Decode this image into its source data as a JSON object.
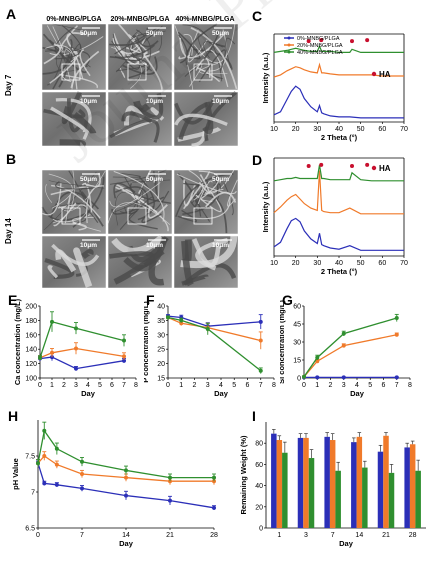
{
  "panels": {
    "A": "A",
    "B": "B",
    "C": "C",
    "D": "D",
    "E": "E",
    "F": "F",
    "G": "G",
    "H": "H",
    "I": "I"
  },
  "sem": {
    "columns": [
      "0%-MNBG/PLGA",
      "20%-MNBG/PLGA",
      "40%-MNBG/PLGA"
    ],
    "row_a": "Day 7",
    "row_b": "Day 14",
    "scale_top": "50μm",
    "scale_zoom": "10μm"
  },
  "watermark": "Journal Pre-proof",
  "colors": {
    "s0": "#2b2fb8",
    "s20": "#f07a2a",
    "s40": "#2f8f2f",
    "ha": "#c8102e"
  },
  "chart_data": [
    {
      "id": "C",
      "type": "line",
      "xlabel": "2 Theta (°)",
      "ylabel": "Intensity (a.u.)",
      "xlim": [
        10,
        70
      ],
      "xticks": [
        10,
        20,
        30,
        40,
        50,
        60,
        70
      ],
      "legend": [
        "0%-MNBG/PLGA",
        "20%-MNBG/PLGA",
        "40%-MNBG/PLGA"
      ],
      "marker_label": "HA",
      "series": [
        {
          "name": "0%-MNBG/PLGA",
          "x": [
            10,
            13,
            16,
            18,
            20,
            22,
            24,
            27,
            30,
            31,
            32,
            33,
            36,
            40,
            45,
            50,
            55,
            60,
            65,
            70
          ],
          "y": [
            0.7,
            1.0,
            2.2,
            3.0,
            3.5,
            3.2,
            2.3,
            1.5,
            1.0,
            1.6,
            0.9,
            0.8,
            0.6,
            0.5,
            0.5,
            0.4,
            0.4,
            0.4,
            0.4,
            0.4
          ]
        },
        {
          "name": "20%-MNBG/PLGA",
          "x": [
            10,
            13,
            16,
            18,
            20,
            22,
            24,
            27,
            30,
            31,
            32,
            33,
            36,
            40,
            45,
            50,
            55,
            60,
            65,
            70
          ],
          "y": [
            4.4,
            4.6,
            5.0,
            5.2,
            5.4,
            5.3,
            5.1,
            4.9,
            4.8,
            5.6,
            4.8,
            4.8,
            4.7,
            4.6,
            4.6,
            4.6,
            4.6,
            4.5,
            4.5,
            4.5
          ]
        },
        {
          "name": "40%-MNBG/PLGA",
          "x": [
            10,
            13,
            16,
            18,
            20,
            22,
            24,
            27,
            30,
            31,
            32,
            33,
            36,
            40,
            45,
            46,
            50,
            55,
            60,
            65,
            70
          ],
          "y": [
            6.8,
            6.9,
            7.0,
            7.1,
            7.2,
            7.1,
            7.0,
            6.9,
            6.9,
            7.4,
            6.9,
            6.9,
            6.9,
            6.8,
            6.8,
            7.1,
            6.8,
            6.8,
            6.8,
            6.8,
            6.8
          ]
        }
      ],
      "ha_peaks": [
        26,
        31.8,
        46,
        53
      ]
    },
    {
      "id": "D",
      "type": "line",
      "xlabel": "2 Theta (°)",
      "ylabel": "Intensity (a.u.)",
      "xlim": [
        10,
        70
      ],
      "xticks": [
        10,
        20,
        30,
        40,
        50,
        60,
        70
      ],
      "marker_label": "HA",
      "series": [
        {
          "name": "0%-MNBG/PLGA",
          "x": [
            10,
            13,
            16,
            18,
            20,
            22,
            24,
            27,
            30,
            31,
            32,
            33,
            36,
            40,
            45,
            50,
            55,
            60,
            65,
            70
          ],
          "y": [
            0.8,
            1.2,
            2.4,
            3.1,
            3.3,
            3.0,
            2.2,
            1.5,
            1.1,
            2.0,
            1.0,
            0.9,
            0.7,
            0.6,
            0.9,
            0.5,
            0.5,
            0.5,
            0.5,
            0.5
          ]
        },
        {
          "name": "20%-MNBG/PLGA",
          "x": [
            10,
            13,
            16,
            18,
            20,
            22,
            24,
            27,
            30,
            31,
            32,
            33,
            36,
            40,
            45,
            50,
            55,
            60,
            65,
            70
          ],
          "y": [
            3.8,
            4.3,
            4.9,
            5.2,
            5.4,
            5.0,
            4.6,
            4.2,
            4.0,
            7.5,
            4.0,
            3.9,
            3.8,
            3.8,
            4.2,
            3.7,
            3.7,
            3.7,
            3.7,
            3.7
          ]
        },
        {
          "name": "40%-MNBG/PLGA",
          "x": [
            10,
            13,
            16,
            18,
            20,
            22,
            24,
            27,
            30,
            31,
            32,
            33,
            36,
            40,
            45,
            46,
            50,
            55,
            60,
            65,
            70
          ],
          "y": [
            6.6,
            6.7,
            6.8,
            6.8,
            6.9,
            6.8,
            6.8,
            6.8,
            6.8,
            8.0,
            6.8,
            6.8,
            6.7,
            6.7,
            6.7,
            7.3,
            6.7,
            6.6,
            6.6,
            6.6,
            6.6
          ]
        }
      ],
      "ha_peaks": [
        26,
        31.8,
        46,
        53
      ]
    },
    {
      "id": "E",
      "type": "line",
      "xlabel": "Day",
      "ylabel": "Ca concentration (mg/L)",
      "xlim": [
        0,
        8
      ],
      "ylim": [
        100,
        200
      ],
      "xticks": [
        0,
        1,
        2,
        3,
        4,
        5,
        6,
        7,
        8
      ],
      "yticks": [
        100,
        120,
        140,
        160,
        180,
        200
      ],
      "x": [
        0,
        1,
        3,
        7
      ],
      "series": [
        {
          "name": "0%-MNBG/PLGA",
          "values": [
            127,
            129,
            113,
            124
          ],
          "err": [
            3,
            5,
            3,
            3
          ]
        },
        {
          "name": "20%-MNBG/PLGA",
          "values": [
            128,
            135,
            141,
            130
          ],
          "err": [
            3,
            6,
            8,
            5
          ]
        },
        {
          "name": "40%-MNBG/PLGA",
          "values": [
            128,
            178,
            169,
            152
          ],
          "err": [
            3,
            14,
            8,
            8
          ]
        }
      ]
    },
    {
      "id": "F",
      "type": "line",
      "xlabel": "Day",
      "ylabel": "P concentration (mg/L)",
      "xlim": [
        0,
        8
      ],
      "ylim": [
        15,
        40
      ],
      "xticks": [
        0,
        1,
        2,
        3,
        4,
        5,
        6,
        7,
        8
      ],
      "yticks": [
        15,
        20,
        25,
        30,
        35,
        40
      ],
      "x": [
        0,
        1,
        3,
        7
      ],
      "series": [
        {
          "name": "0%-MNBG/PLGA",
          "values": [
            36.5,
            36,
            33,
            34.5
          ],
          "err": [
            0.5,
            0.8,
            1.2,
            2.5
          ]
        },
        {
          "name": "20%-MNBG/PLGA",
          "values": [
            36,
            34,
            32.5,
            28
          ],
          "err": [
            0.5,
            0.8,
            1.5,
            3.0
          ]
        },
        {
          "name": "40%-MNBG/PLGA",
          "values": [
            36,
            35,
            32,
            17.5
          ],
          "err": [
            0.5,
            0.8,
            2.0,
            1.0
          ]
        }
      ]
    },
    {
      "id": "G",
      "type": "line",
      "xlabel": "Day",
      "ylabel": "Si concentration (mg/L)",
      "xlim": [
        0,
        8
      ],
      "ylim": [
        0,
        60
      ],
      "xticks": [
        0,
        1,
        2,
        3,
        4,
        5,
        6,
        7,
        8
      ],
      "yticks": [
        0,
        15,
        30,
        45,
        60
      ],
      "x": [
        0,
        1,
        3,
        7
      ],
      "series": [
        {
          "name": "0%-MNBG/PLGA",
          "values": [
            0.5,
            0.5,
            0.5,
            0.5
          ],
          "err": [
            0.3,
            0.3,
            0.3,
            0.3
          ]
        },
        {
          "name": "20%-MNBG/PLGA",
          "values": [
            1,
            14,
            27,
            36
          ],
          "err": [
            0.5,
            1.5,
            1.5,
            1.5
          ]
        },
        {
          "name": "40%-MNBG/PLGA",
          "values": [
            1,
            17,
            37,
            50
          ],
          "err": [
            0.5,
            2,
            2,
            3
          ]
        }
      ]
    },
    {
      "id": "H",
      "type": "line",
      "xlabel": "Day",
      "ylabel": "pH Value",
      "xlim": [
        0,
        28
      ],
      "ylim": [
        6.5,
        8.0
      ],
      "xticks": [
        0,
        7,
        14,
        21,
        28
      ],
      "yticks": [
        6.5,
        7.0,
        7.5
      ],
      "x": [
        0,
        1,
        3,
        7,
        14,
        21,
        28
      ],
      "series": [
        {
          "name": "0%-MNBG/PLGA",
          "values": [
            7.4,
            7.12,
            7.1,
            7.05,
            6.95,
            6.88,
            6.78
          ],
          "err": [
            0.03,
            0.03,
            0.03,
            0.04,
            0.06,
            0.06,
            0.03
          ]
        },
        {
          "name": "20%-MNBG/PLGA",
          "values": [
            7.4,
            7.5,
            7.38,
            7.25,
            7.2,
            7.15,
            7.15
          ],
          "err": [
            0.05,
            0.06,
            0.05,
            0.05,
            0.05,
            0.05,
            0.05
          ]
        },
        {
          "name": "40%-MNBG/PLGA",
          "values": [
            7.4,
            7.85,
            7.6,
            7.42,
            7.3,
            7.2,
            7.2
          ],
          "err": [
            0.05,
            0.12,
            0.08,
            0.06,
            0.06,
            0.05,
            0.05
          ]
        }
      ]
    },
    {
      "id": "I",
      "type": "bar",
      "xlabel": "Day",
      "ylabel": "Remaining Weight (%)",
      "categories": [
        "1",
        "3",
        "7",
        "14",
        "21",
        "28"
      ],
      "ylim": [
        0,
        100
      ],
      "yticks": [
        0,
        20,
        40,
        60,
        80
      ],
      "series": [
        {
          "name": "0%-MNBG/PLGA",
          "values": [
            89,
            85,
            86,
            81,
            72,
            76
          ],
          "err": [
            4,
            4,
            4,
            4,
            6,
            4
          ]
        },
        {
          "name": "20%-MNBG/PLGA",
          "values": [
            83,
            85,
            83,
            86,
            87,
            79
          ],
          "err": [
            4,
            4,
            6,
            4,
            3,
            3
          ]
        },
        {
          "name": "40%-MNBG/PLGA",
          "values": [
            71,
            66,
            54,
            57,
            52,
            54
          ],
          "err": [
            10,
            8,
            8,
            6,
            8,
            10
          ]
        }
      ]
    }
  ]
}
